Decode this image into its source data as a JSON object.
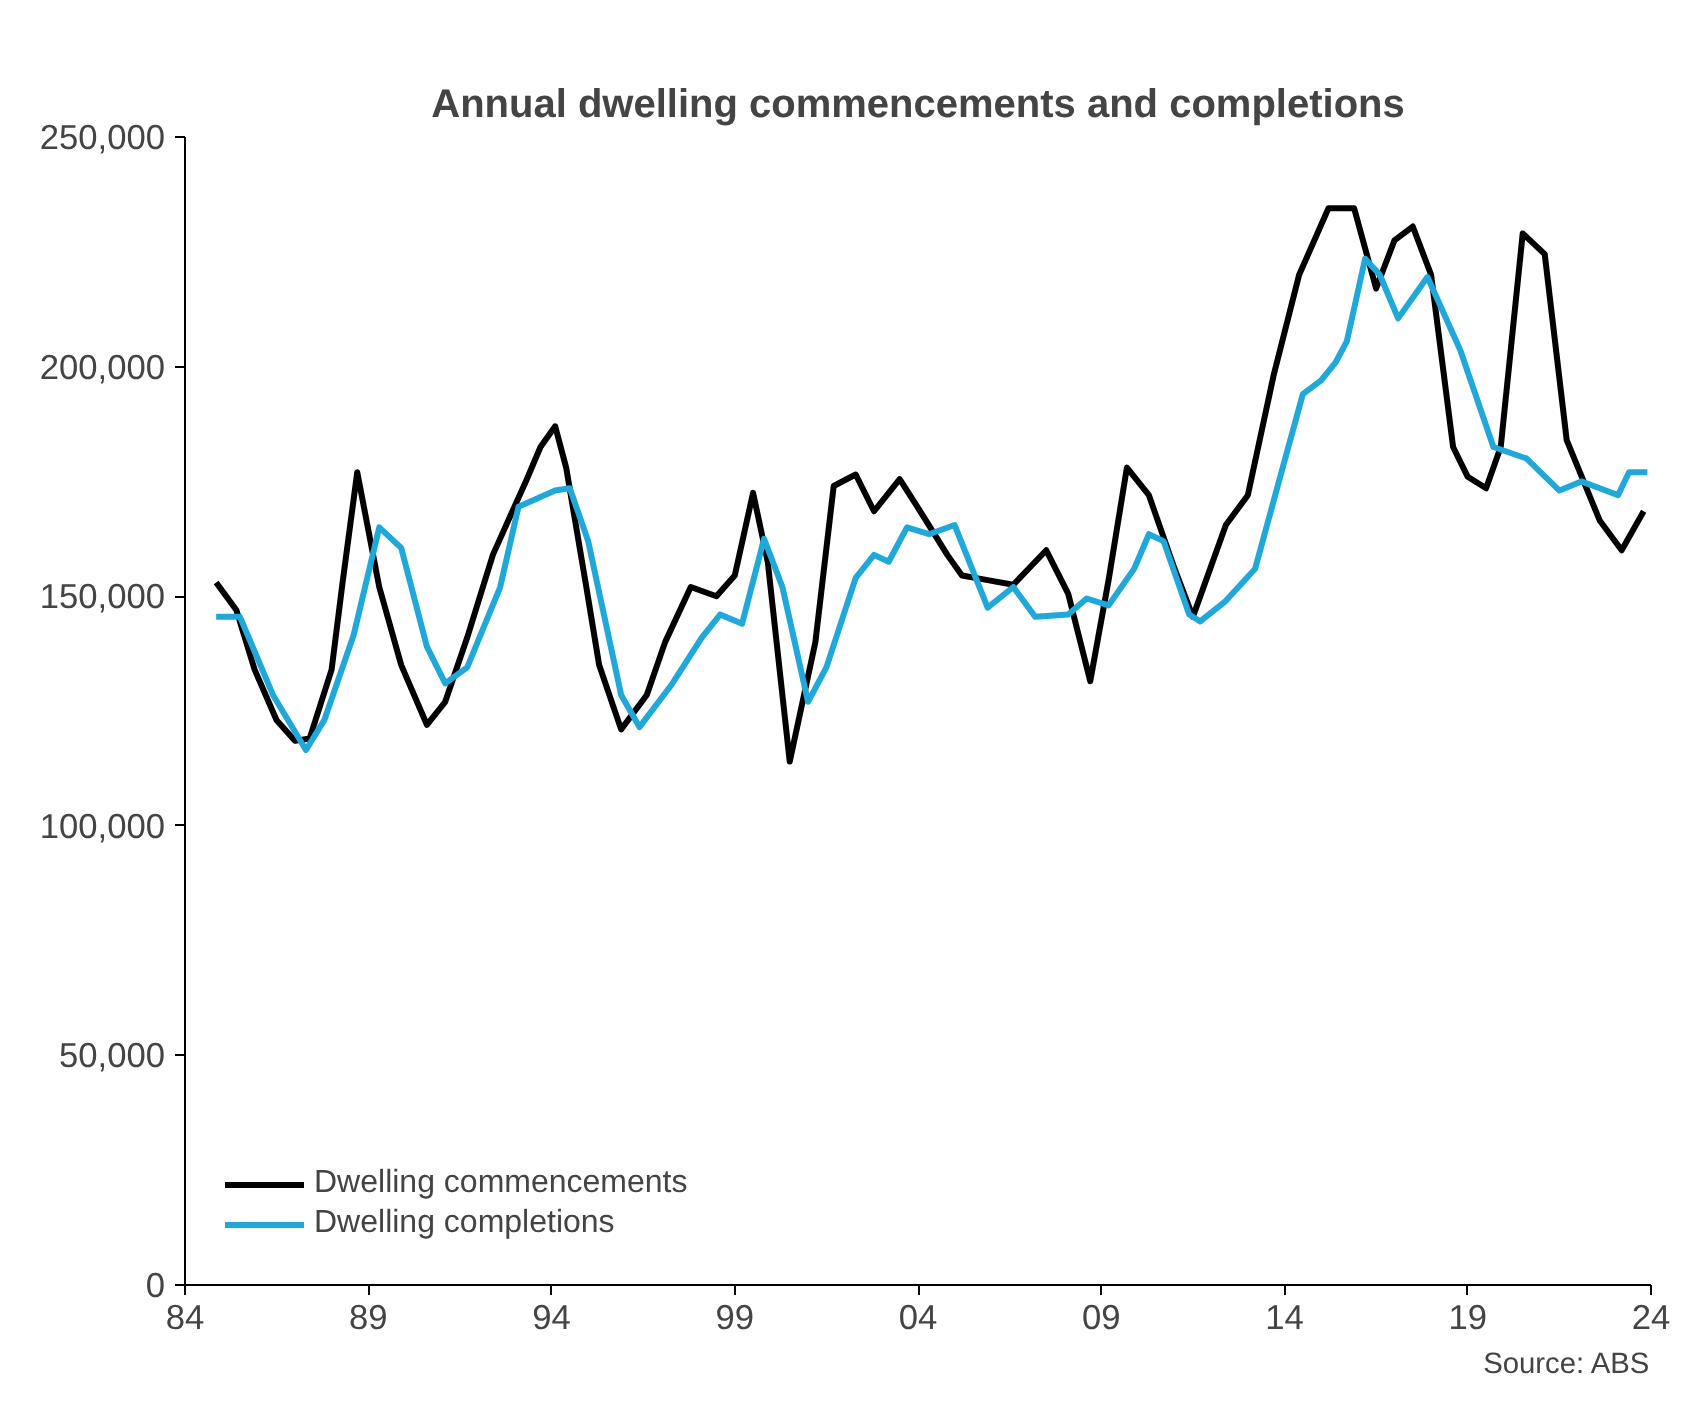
{
  "chart_data": {
    "type": "line",
    "title": "Annual dwelling commencements and completions",
    "xlim": [
      1984,
      2024
    ],
    "xticks": [
      {
        "value": 1984,
        "label": "84"
      },
      {
        "value": 1989,
        "label": "89"
      },
      {
        "value": 1994,
        "label": "94"
      },
      {
        "value": 1999,
        "label": "99"
      },
      {
        "value": 2004,
        "label": "04"
      },
      {
        "value": 2009,
        "label": "09"
      },
      {
        "value": 2014,
        "label": "14"
      },
      {
        "value": 2019,
        "label": "19"
      },
      {
        "value": 2024,
        "label": "24"
      }
    ],
    "ylim": [
      0,
      250000
    ],
    "yticks": [
      {
        "value": 0,
        "label": "0"
      },
      {
        "value": 50000,
        "label": "50,000"
      },
      {
        "value": 100000,
        "label": "100,000"
      },
      {
        "value": 150000,
        "label": "150,000"
      },
      {
        "value": 200000,
        "label": "200,000"
      },
      {
        "value": 250000,
        "label": "250,000"
      }
    ],
    "grid": false,
    "legend": "bottom left",
    "line_style": "solid",
    "marker": "none",
    "annotations": [
      "Source: ABS"
    ],
    "series": [
      {
        "name": "Dwelling commencements",
        "color": "#000000",
        "x": [
          1984.85,
          1985.4,
          1985.9,
          1986.5,
          1987.0,
          1987.4,
          1988.0,
          1988.3,
          1988.7,
          1989.3,
          1989.9,
          1990.6,
          1991.1,
          1991.7,
          1992.4,
          1993.3,
          1993.7,
          1994.1,
          1994.4,
          1994.95,
          1995.3,
          1995.9,
          1996.6,
          1997.1,
          1997.8,
          1998.5,
          1999.0,
          1999.5,
          1999.9,
          2000.5,
          2001.2,
          2001.7,
          2002.3,
          2002.8,
          2003.5,
          2004.1,
          2004.8,
          2005.2,
          2005.9,
          2006.6,
          2007.5,
          2008.1,
          2008.7,
          2009.2,
          2009.7,
          2010.3,
          2011.0,
          2011.5,
          2012.4,
          2013.0,
          2013.7,
          2014.4,
          2015.2,
          2015.9,
          2016.5,
          2017.0,
          2017.5,
          2018.0,
          2018.6,
          2019.0,
          2019.5,
          2019.9,
          2020.5,
          2021.1,
          2021.7,
          2022.6,
          2023.2,
          2023.8
        ],
        "values": [
          153000,
          147000,
          134000,
          123000,
          118500,
          119000,
          134000,
          153000,
          177000,
          152000,
          135000,
          122000,
          127000,
          141000,
          159000,
          175000,
          182500,
          187000,
          178000,
          152000,
          135000,
          121000,
          128500,
          140000,
          152000,
          150000,
          154500,
          172500,
          157500,
          114000,
          140000,
          174000,
          176500,
          168500,
          175500,
          168000,
          159000,
          154500,
          153500,
          152500,
          160000,
          150500,
          131500,
          153500,
          178000,
          172000,
          156000,
          145500,
          165500,
          172000,
          198000,
          220000,
          234500,
          234500,
          217000,
          227500,
          230500,
          220000,
          182500,
          176000,
          173500,
          182500,
          229000,
          224500,
          184000,
          166500,
          160000,
          168500
        ]
      },
      {
        "name": "Dwelling completions",
        "color": "#1fa8d9",
        "x": [
          1984.85,
          1985.5,
          1986.4,
          1987.3,
          1987.8,
          1988.6,
          1989.3,
          1989.9,
          1990.6,
          1991.1,
          1991.7,
          1992.6,
          1993.1,
          1994.1,
          1994.5,
          1995.0,
          1995.9,
          1996.4,
          1997.3,
          1998.1,
          1998.6,
          1999.2,
          1999.8,
          2000.3,
          2001.0,
          2001.5,
          2002.3,
          2002.8,
          2003.2,
          2003.7,
          2004.3,
          2005.0,
          2005.9,
          2006.6,
          2007.2,
          2008.1,
          2008.6,
          2009.2,
          2009.9,
          2010.3,
          2010.7,
          2011.4,
          2011.7,
          2012.4,
          2013.2,
          2013.9,
          2014.5,
          2015.0,
          2015.4,
          2015.7,
          2016.2,
          2016.6,
          2017.1,
          2017.9,
          2018.8,
          2019.7,
          2020.6,
          2021.5,
          2022.1,
          2022.6,
          2023.1,
          2023.4,
          2023.9
        ],
        "values": [
          145500,
          145500,
          128500,
          116500,
          123000,
          141500,
          165000,
          160500,
          139000,
          131000,
          134500,
          152000,
          169500,
          173000,
          173500,
          162000,
          128500,
          121500,
          131000,
          141000,
          146000,
          144000,
          162500,
          152000,
          127000,
          134500,
          154000,
          159000,
          157500,
          165000,
          163500,
          165500,
          147500,
          152000,
          145500,
          146000,
          149500,
          148000,
          156000,
          163500,
          162000,
          146000,
          144500,
          149000,
          156000,
          176500,
          194000,
          197000,
          201000,
          205500,
          223500,
          220000,
          210500,
          219500,
          203500,
          182500,
          180000,
          173000,
          175000,
          173500,
          172000,
          177000,
          177000
        ]
      }
    ]
  }
}
